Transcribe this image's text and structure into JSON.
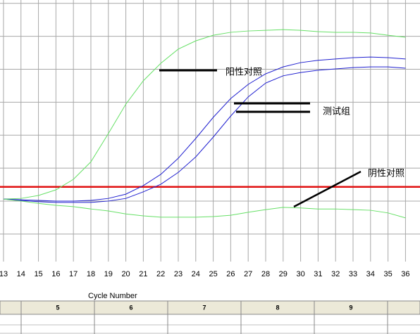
{
  "chart_data": {
    "type": "line",
    "x": [
      13,
      14,
      15,
      16,
      17,
      18,
      19,
      20,
      21,
      22,
      23,
      24,
      25,
      26,
      27,
      28,
      29,
      30,
      31,
      32,
      33,
      34,
      35,
      36
    ],
    "xticks": [
      13,
      14,
      15,
      16,
      17,
      18,
      19,
      20,
      21,
      22,
      23,
      24,
      25,
      26,
      27,
      28,
      29,
      30,
      31,
      32,
      33,
      34,
      35,
      36
    ],
    "xlim": [
      12.8,
      36.83
    ],
    "ylim": [
      0.1,
      8.1
    ],
    "yticks": [
      1,
      2,
      3,
      4,
      5,
      6,
      7,
      8
    ],
    "grid": true,
    "xlabel": "Cycle Number",
    "threshold": {
      "value": 2.43,
      "color": "#e01010"
    },
    "series": [
      {
        "color": "#66e066",
        "values": [
          2.06,
          2.08,
          2.17,
          2.34,
          2.66,
          3.19,
          4.05,
          4.94,
          5.65,
          6.18,
          6.61,
          6.86,
          7.03,
          7.12,
          7.16,
          7.18,
          7.2,
          7.18,
          7.14,
          7.12,
          7.12,
          7.1,
          7.03,
          6.97
        ]
      },
      {
        "color": "#2020d0",
        "values": [
          2.06,
          2.04,
          2.02,
          2.0,
          2.0,
          2.02,
          2.08,
          2.21,
          2.47,
          2.81,
          3.3,
          3.9,
          4.54,
          5.11,
          5.54,
          5.86,
          6.07,
          6.2,
          6.27,
          6.31,
          6.35,
          6.37,
          6.35,
          6.31
        ]
      },
      {
        "color": "#2020d0",
        "values": [
          2.06,
          2.02,
          1.98,
          1.96,
          1.96,
          1.96,
          2.0,
          2.08,
          2.28,
          2.51,
          2.87,
          3.34,
          3.94,
          4.58,
          5.16,
          5.58,
          5.8,
          5.9,
          5.97,
          6.01,
          6.05,
          6.07,
          6.07,
          6.03
        ]
      },
      {
        "color": "#66e066",
        "values": [
          2.06,
          2.0,
          1.93,
          1.87,
          1.83,
          1.76,
          1.7,
          1.61,
          1.55,
          1.51,
          1.51,
          1.51,
          1.53,
          1.57,
          1.66,
          1.74,
          1.81,
          1.79,
          1.76,
          1.76,
          1.74,
          1.72,
          1.64,
          1.49
        ]
      }
    ],
    "annotations": [
      "阳性对照",
      "测试组",
      "阴性对照"
    ]
  },
  "table": {
    "headers": [
      5,
      6,
      7,
      8,
      9
    ]
  }
}
